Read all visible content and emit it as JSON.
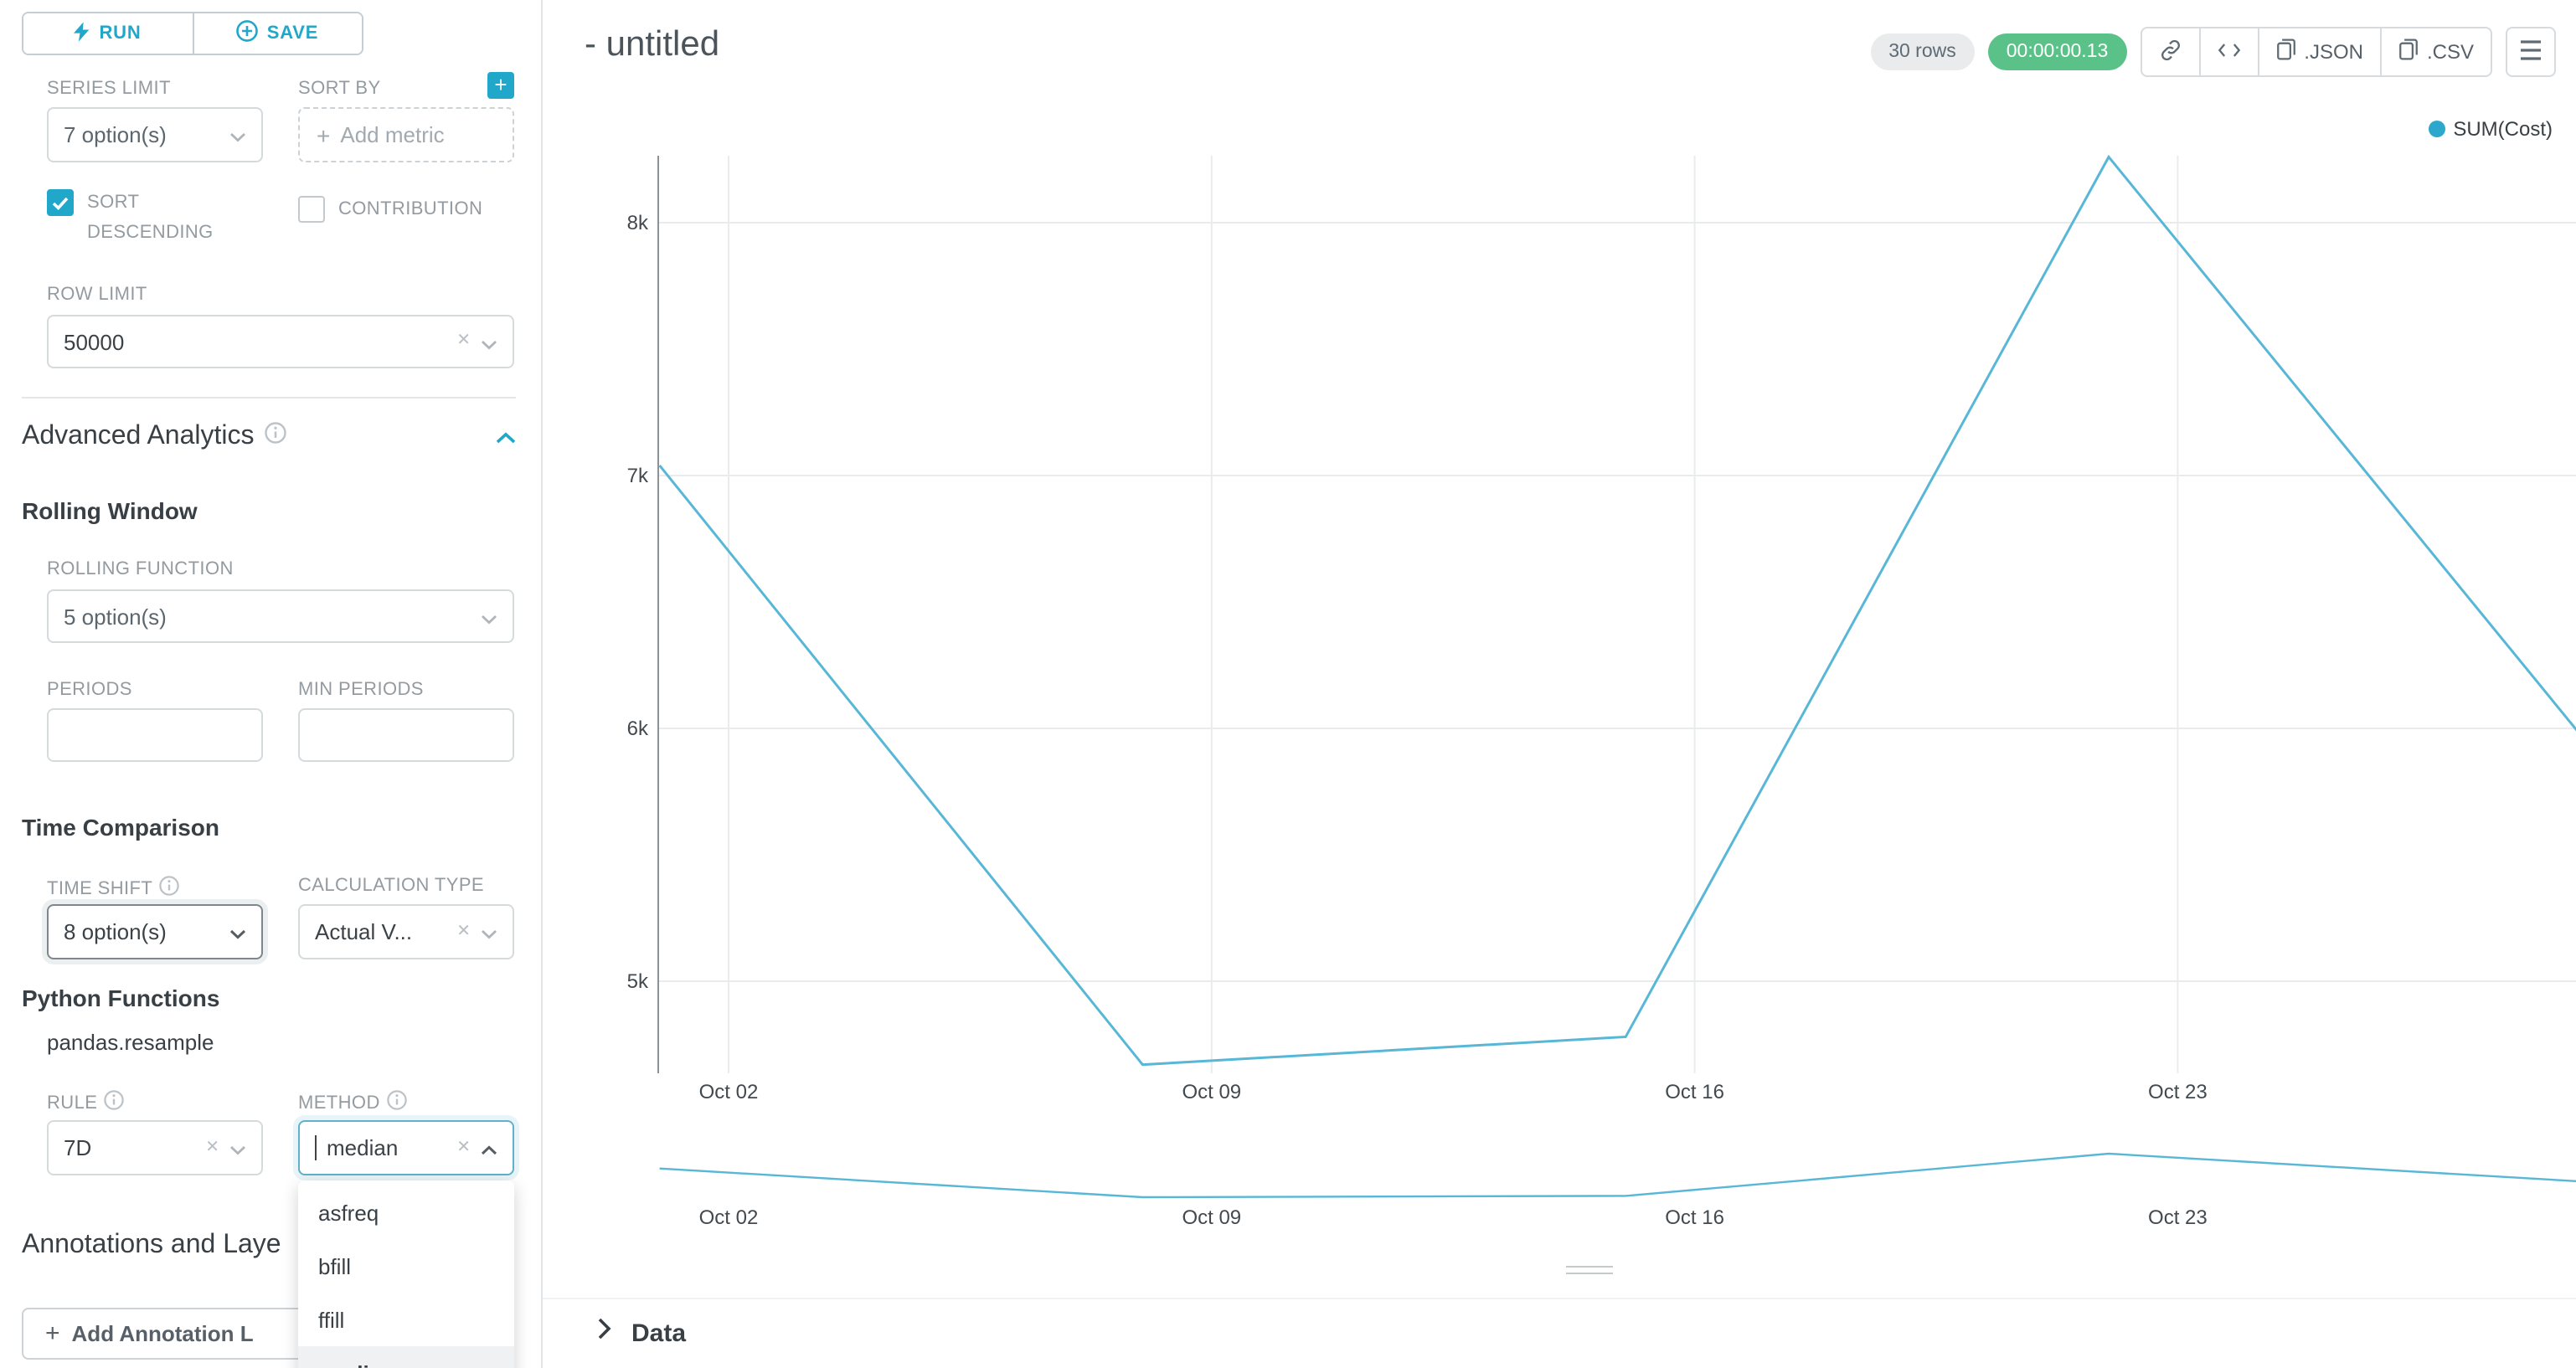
{
  "toolbar": {
    "run_label": "RUN",
    "save_label": "SAVE"
  },
  "sidebar": {
    "series_limit": {
      "label": "SERIES LIMIT",
      "value": "7 option(s)"
    },
    "sort_by": {
      "label": "SORT BY",
      "placeholder": "Add metric"
    },
    "sort_descending": {
      "label": "SORT DESCENDING",
      "checked": true
    },
    "contribution": {
      "label": "CONTRIBUTION",
      "checked": false
    },
    "row_limit": {
      "label": "ROW LIMIT",
      "value": "50000"
    },
    "advanced_analytics_title": "Advanced Analytics",
    "rolling_window": {
      "title": "Rolling Window",
      "rolling_function_label": "ROLLING FUNCTION",
      "rolling_function_value": "5 option(s)",
      "periods_label": "PERIODS",
      "min_periods_label": "MIN PERIODS"
    },
    "time_comparison": {
      "title": "Time Comparison",
      "time_shift_label": "TIME SHIFT",
      "time_shift_value": "8 option(s)",
      "calculation_type_label": "CALCULATION TYPE",
      "calculation_type_value": "Actual V..."
    },
    "python_functions": {
      "title": "Python Functions",
      "subtitle": "pandas.resample",
      "rule_label": "RULE",
      "rule_value": "7D",
      "method_label": "METHOD",
      "method_value": "median",
      "method_options": [
        "asfreq",
        "bfill",
        "ffill",
        "median"
      ],
      "method_selected": "median"
    },
    "annotations_title": "Annotations and Laye",
    "add_annotation_label": "Add Annotation L"
  },
  "header": {
    "title": "- untitled",
    "rows_badge": "30 rows",
    "timer_badge": "00:00:00.13",
    "json_button": ".JSON",
    "csv_button": ".CSV"
  },
  "chart_data": {
    "type": "line",
    "legend": [
      {
        "label": "SUM(Cost)",
        "color": "#2ca8cc"
      }
    ],
    "legend_position": "top-right",
    "grid": true,
    "series": [
      {
        "name": "SUM(Cost)",
        "color": "#58b7d7",
        "points": [
          {
            "date": "Oct 01",
            "day": 0,
            "value": 7040
          },
          {
            "date": "Oct 08",
            "day": 7,
            "value": 4670
          },
          {
            "date": "Oct 15",
            "day": 14,
            "value": 4780
          },
          {
            "date": "Oct 22",
            "day": 21,
            "value": 8260
          },
          {
            "date": "Oct 29",
            "day": 28,
            "value": 5920
          }
        ]
      }
    ],
    "x_axis": {
      "ticks": [
        {
          "label": "Oct 02",
          "day": 1
        },
        {
          "label": "Oct 09",
          "day": 8
        },
        {
          "label": "Oct 16",
          "day": 15
        },
        {
          "label": "Oct 23",
          "day": 22
        }
      ]
    },
    "y_axis": {
      "top_value": 8000,
      "ticks": [
        {
          "label": "5k",
          "value": 5000
        },
        {
          "label": "6k",
          "value": 6000
        },
        {
          "label": "7k",
          "value": 7000
        },
        {
          "label": "8k",
          "value": 8000
        }
      ]
    },
    "has_minimap": true
  },
  "data_panel": {
    "title": "Data"
  },
  "colors": {
    "primary": "#20a7c9",
    "success": "#5ac189"
  }
}
